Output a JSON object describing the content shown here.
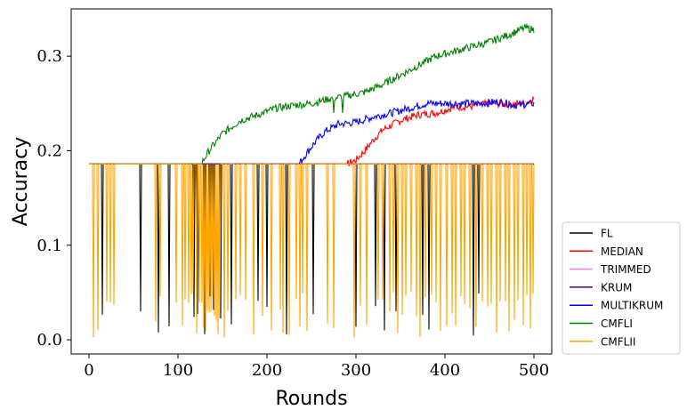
{
  "chart_data": {
    "type": "line",
    "title": "",
    "xlabel": "Rounds",
    "ylabel": "Accuracy",
    "xlim": [
      -20,
      520
    ],
    "ylim": [
      -0.015,
      0.35
    ],
    "xticks": [
      0,
      100,
      200,
      300,
      400,
      500
    ],
    "xtick_labels": [
      "0",
      "100",
      "200",
      "300",
      "400",
      "500"
    ],
    "yticks": [
      0.0,
      0.1,
      0.2,
      0.3
    ],
    "ytick_labels": [
      "0.0",
      "0.1",
      "0.2",
      "0.3"
    ],
    "grid": false,
    "legend_position": "outside-right-bottom",
    "baseline_accuracy": 0.186,
    "series": [
      {
        "name": "FL",
        "color": "#000000",
        "drop_rounds": [
          15,
          58,
          78,
          90,
          118,
          122,
          130,
          136,
          140,
          148,
          160,
          190,
          200,
          222,
          252,
          300,
          322,
          332,
          345,
          375,
          382,
          432,
          438
        ]
      },
      {
        "name": "MEDIAN",
        "color": "#ff0000",
        "rise_points": [
          [
            0,
            0.186
          ],
          [
            290,
            0.186
          ],
          [
            300,
            0.19
          ],
          [
            310,
            0.2
          ],
          [
            320,
            0.212
          ],
          [
            330,
            0.222
          ],
          [
            350,
            0.232
          ],
          [
            370,
            0.238
          ],
          [
            390,
            0.24
          ],
          [
            410,
            0.246
          ],
          [
            430,
            0.247
          ],
          [
            450,
            0.25
          ],
          [
            470,
            0.249
          ],
          [
            490,
            0.25
          ],
          [
            500,
            0.255
          ]
        ]
      },
      {
        "name": "TRIMMED",
        "color": "#ee82ee",
        "flat": 0.186
      },
      {
        "name": "KRUM",
        "color": "#4b0082",
        "flat": 0.186
      },
      {
        "name": "MULTIKRUM",
        "color": "#0000ff",
        "rise_points": [
          [
            0,
            0.186
          ],
          [
            236,
            0.186
          ],
          [
            245,
            0.198
          ],
          [
            255,
            0.21
          ],
          [
            265,
            0.22
          ],
          [
            280,
            0.228
          ],
          [
            300,
            0.23
          ],
          [
            320,
            0.236
          ],
          [
            340,
            0.24
          ],
          [
            360,
            0.245
          ],
          [
            380,
            0.25
          ],
          [
            400,
            0.25
          ],
          [
            420,
            0.25
          ],
          [
            440,
            0.25
          ],
          [
            460,
            0.252
          ],
          [
            480,
            0.248
          ],
          [
            500,
            0.25
          ]
        ]
      },
      {
        "name": "CMFLI",
        "color": "#008000",
        "rise_points": [
          [
            0,
            0.186
          ],
          [
            126,
            0.186
          ],
          [
            135,
            0.2
          ],
          [
            150,
            0.218
          ],
          [
            170,
            0.232
          ],
          [
            190,
            0.238
          ],
          [
            210,
            0.245
          ],
          [
            230,
            0.248
          ],
          [
            250,
            0.25
          ],
          [
            270,
            0.255
          ],
          [
            290,
            0.258
          ],
          [
            310,
            0.262
          ],
          [
            330,
            0.27
          ],
          [
            350,
            0.28
          ],
          [
            370,
            0.29
          ],
          [
            390,
            0.3
          ],
          [
            410,
            0.305
          ],
          [
            430,
            0.31
          ],
          [
            450,
            0.315
          ],
          [
            470,
            0.322
          ],
          [
            490,
            0.33
          ],
          [
            500,
            0.328
          ]
        ],
        "dip_rounds": [
          275,
          285
        ]
      },
      {
        "name": "CMFLII",
        "color": "#ffa500",
        "drop_rounds": [
          5,
          10,
          20,
          24,
          28,
          75,
          80,
          98,
          105,
          108,
          112,
          115,
          117,
          121,
          124,
          127,
          129,
          131,
          133,
          135,
          137,
          139,
          141,
          143,
          145,
          147,
          152,
          156,
          165,
          170,
          176,
          185,
          195,
          205,
          215,
          218,
          225,
          233,
          237,
          240,
          245,
          268,
          275,
          298,
          305,
          312,
          325,
          330,
          338,
          342,
          347,
          352,
          356,
          362,
          368,
          372,
          378,
          385,
          390,
          395,
          402,
          408,
          412,
          418,
          422,
          428,
          435,
          442,
          448,
          452,
          458,
          462,
          468,
          472,
          478,
          482,
          488,
          492,
          496,
          499
        ]
      }
    ]
  }
}
